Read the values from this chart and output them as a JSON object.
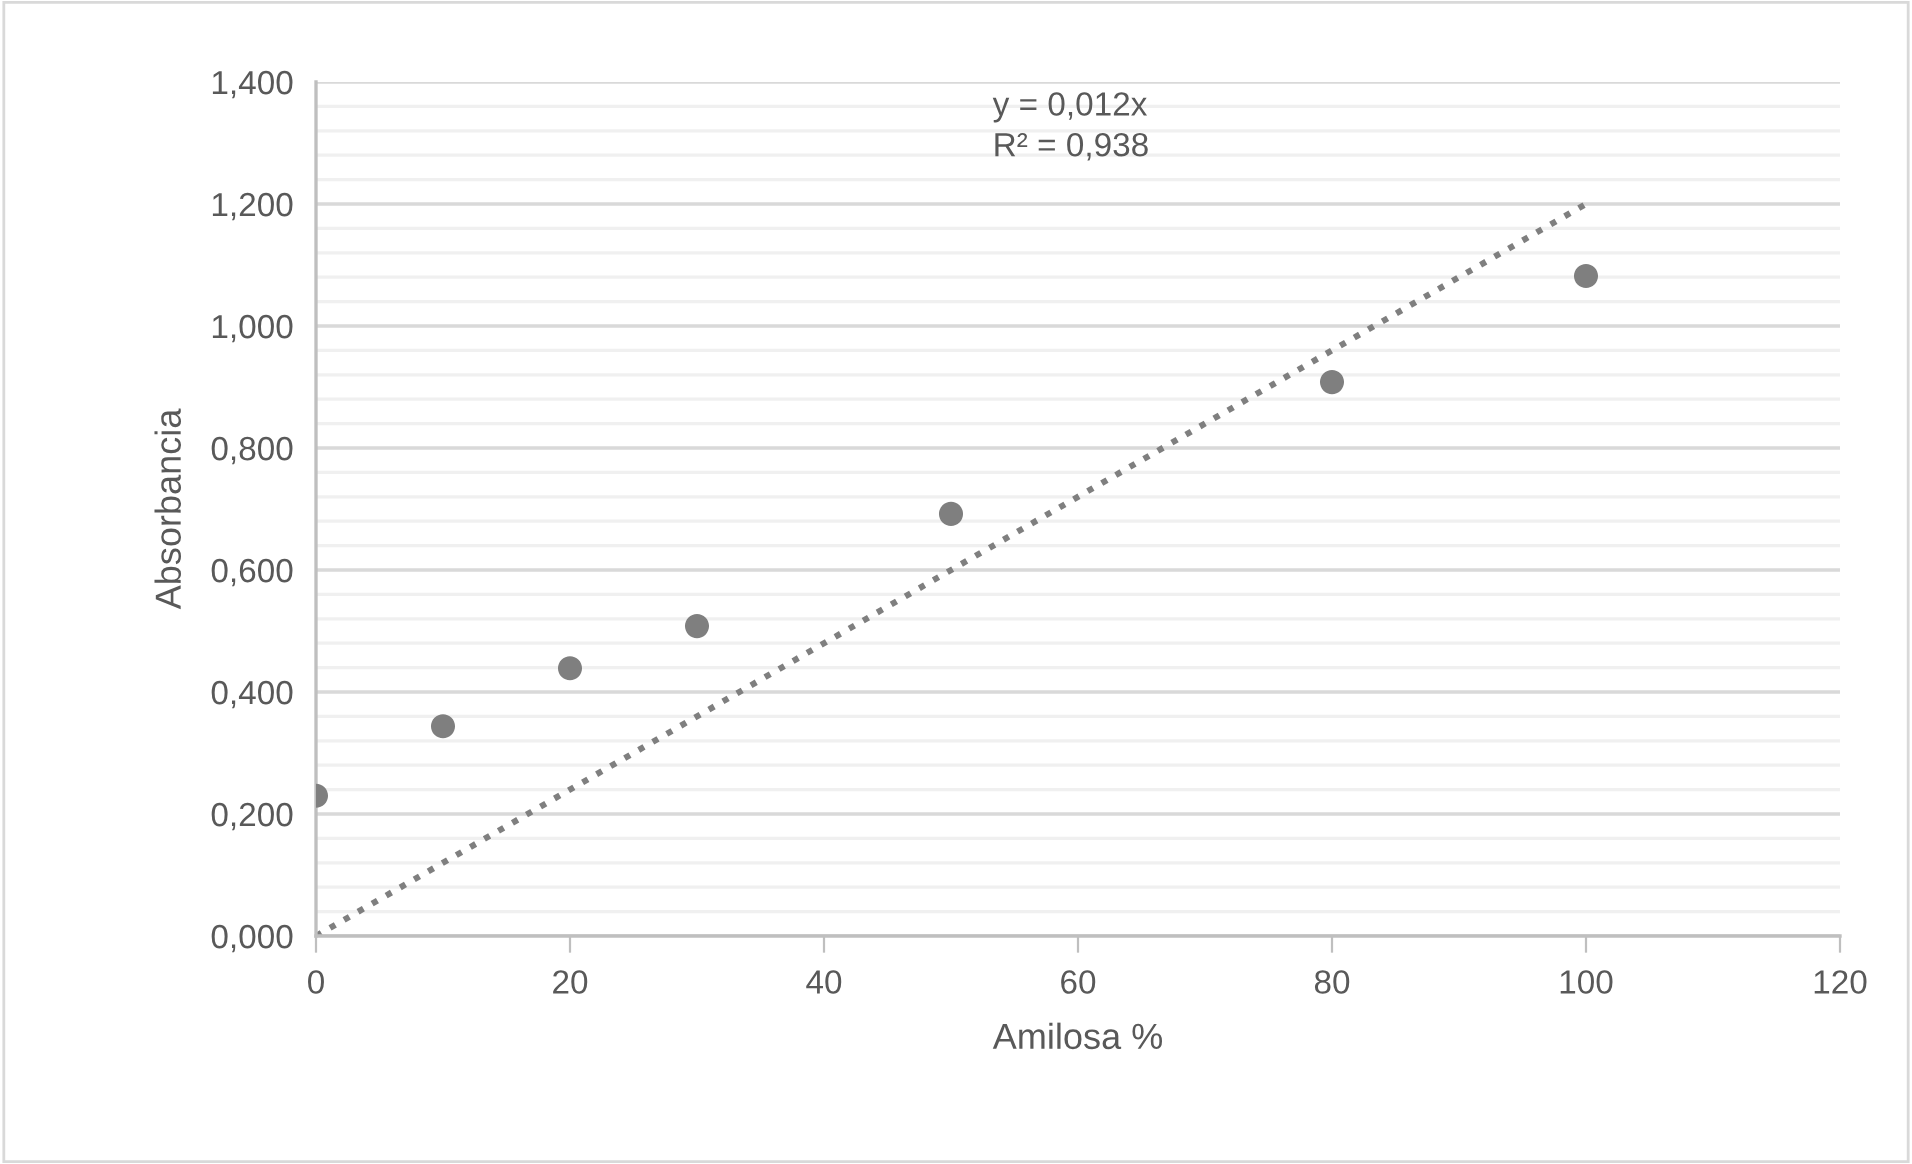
{
  "chart_data": {
    "type": "scatter",
    "xlabel": "Amilosa %",
    "ylabel": "Absorbancia",
    "series": [
      {
        "color": "#7f7f7f",
        "marker": "circle",
        "x": [
          0,
          10,
          20,
          30,
          50,
          80,
          100
        ],
        "values": [
          0.23,
          0.344,
          0.439,
          0.508,
          0.692,
          0.908,
          1.082
        ]
      },
      {
        "type": "line",
        "color": "#7f7f7f",
        "line_style": "dotted",
        "marker": "none",
        "x": [
          0,
          100
        ],
        "values": [
          0,
          1.2
        ]
      }
    ],
    "annotations": [
      "y = 0,012x\nR² = 0,938"
    ],
    "xlim": [
      0,
      120
    ],
    "xticks": [
      0,
      20,
      40,
      60,
      80,
      100,
      120
    ],
    "ylim": [
      0,
      1.4
    ],
    "yticks": [
      {
        "value": 0,
        "label": "0,000"
      },
      {
        "value": 0.04,
        "label": null
      },
      {
        "value": 0.08,
        "label": null
      },
      {
        "value": 0.12,
        "label": null
      },
      {
        "value": 0.16,
        "label": null
      },
      {
        "value": 0.2,
        "label": "0,200"
      },
      {
        "value": 0.24,
        "label": null
      },
      {
        "value": 0.28,
        "label": null
      },
      {
        "value": 0.32,
        "label": null
      },
      {
        "value": 0.36,
        "label": null
      },
      {
        "value": 0.4,
        "label": "0,400"
      },
      {
        "value": 0.44,
        "label": null
      },
      {
        "value": 0.48,
        "label": null
      },
      {
        "value": 0.52,
        "label": null
      },
      {
        "value": 0.56,
        "label": null
      },
      {
        "value": 0.6,
        "label": "0,600"
      },
      {
        "value": 0.64,
        "label": null
      },
      {
        "value": 0.68,
        "label": null
      },
      {
        "value": 0.72,
        "label": null
      },
      {
        "value": 0.76,
        "label": null
      },
      {
        "value": 0.8,
        "label": "0,800"
      },
      {
        "value": 0.84,
        "label": null
      },
      {
        "value": 0.88,
        "label": null
      },
      {
        "value": 0.92,
        "label": null
      },
      {
        "value": 0.96,
        "label": null
      },
      {
        "value": 1.0,
        "label": "1,000"
      },
      {
        "value": 1.04,
        "label": null
      },
      {
        "value": 1.08,
        "label": null
      },
      {
        "value": 1.12,
        "label": null
      },
      {
        "value": 1.16,
        "label": null
      },
      {
        "value": 1.2,
        "label": "1,200"
      },
      {
        "value": 1.24,
        "label": null
      },
      {
        "value": 1.28,
        "label": null
      },
      {
        "value": 1.32,
        "label": null
      },
      {
        "value": 1.36,
        "label": null
      },
      {
        "value": 1.4,
        "label": "1,400"
      }
    ],
    "grid": "y",
    "legend": false
  }
}
